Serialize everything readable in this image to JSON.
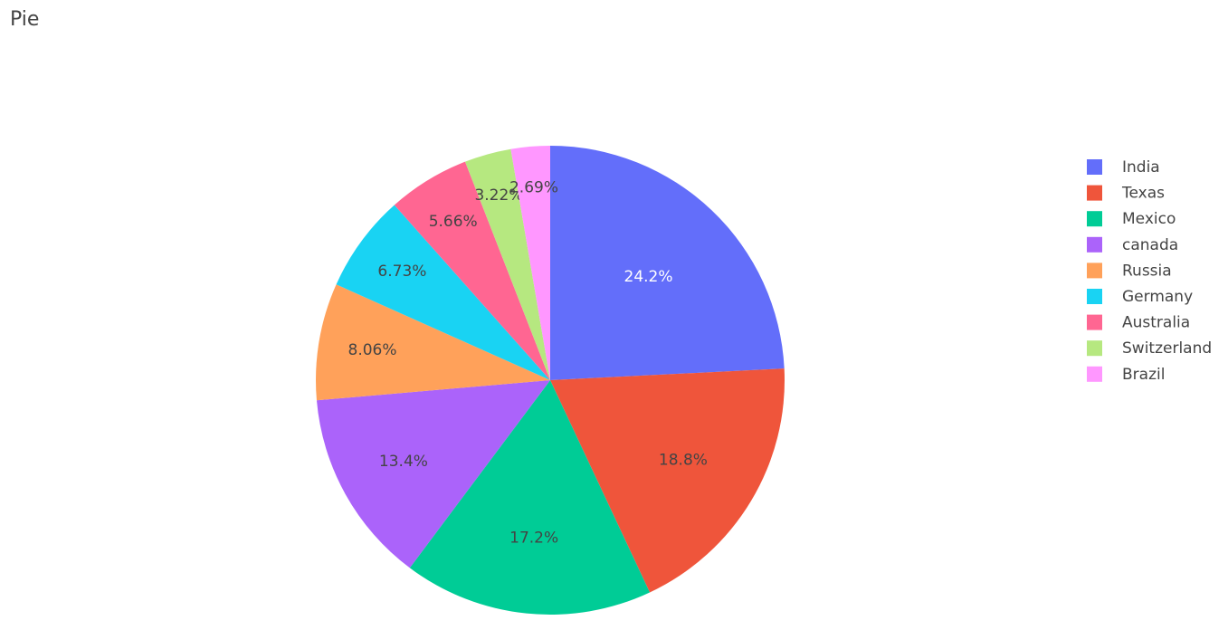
{
  "chart_data": {
    "type": "pie",
    "title": "Pie",
    "categories": [
      "India",
      "Texas",
      "Mexico",
      "canada",
      "Russia",
      "Germany",
      "Australia",
      "Switzerland",
      "Brazil"
    ],
    "values": [
      24.2,
      18.8,
      17.2,
      13.4,
      8.06,
      6.73,
      5.66,
      3.22,
      2.69
    ],
    "value_labels": [
      "24.2%",
      "18.8%",
      "17.2%",
      "13.4%",
      "8.06%",
      "6.73%",
      "5.66%",
      "3.22%",
      "2.69%"
    ],
    "colors": [
      "#636efa",
      "#EF553B",
      "#00cc96",
      "#ab63fa",
      "#FFA15A",
      "#19d3f3",
      "#FF6692",
      "#B6E880",
      "#FF97FF"
    ],
    "legend": "right"
  }
}
